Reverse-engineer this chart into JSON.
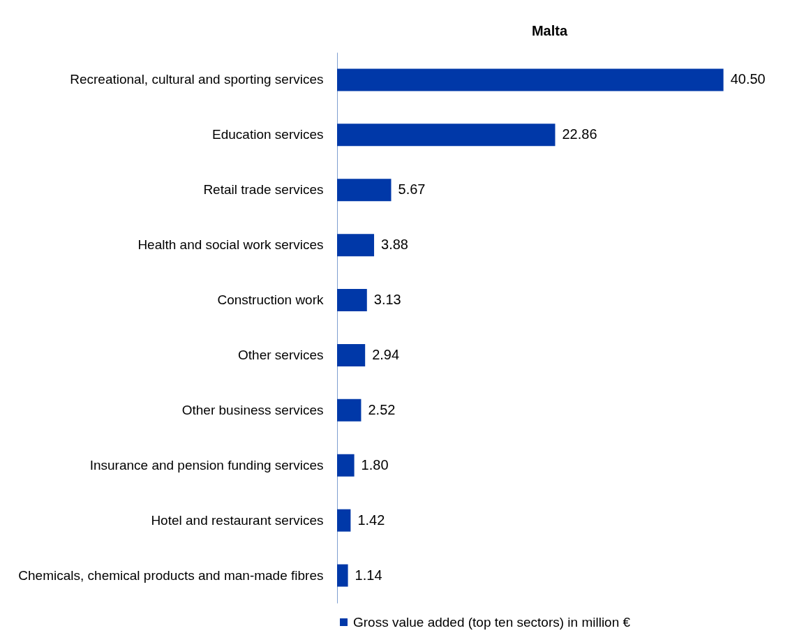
{
  "chart_data": {
    "type": "bar",
    "orientation": "horizontal",
    "title": "Malta",
    "categories": [
      "Recreational, cultural and sporting services",
      "Education services",
      "Retail  trade services",
      "Health and social work services",
      "Construction work",
      "Other services",
      "Other business services",
      "Insurance and pension funding services",
      "Hotel and restaurant services",
      "Chemicals, chemical products and man-made fibres"
    ],
    "series": [
      {
        "name": "Gross value added (top ten sectors) in million €",
        "color": "#0038a8",
        "values": [
          40.5,
          22.86,
          5.67,
          3.88,
          3.13,
          2.94,
          2.52,
          1.8,
          1.42,
          1.14
        ],
        "value_labels": [
          "40.50",
          "22.86",
          "5.67",
          "3.88",
          "3.13",
          "2.94",
          "2.52",
          "1.80",
          "1.42",
          "1.14"
        ]
      }
    ],
    "legend": "bottom",
    "grid": false
  }
}
